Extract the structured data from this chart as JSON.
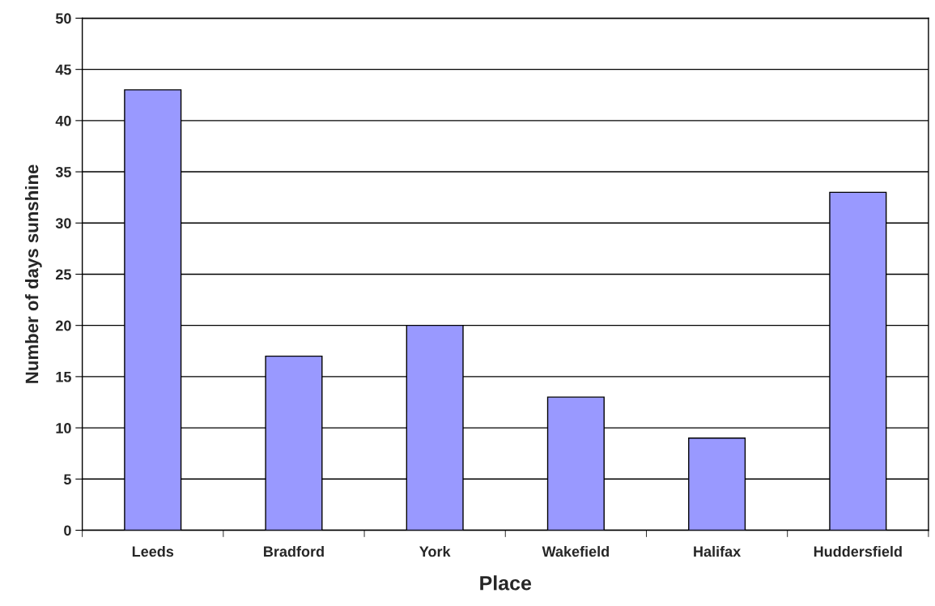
{
  "chart_data": {
    "type": "bar",
    "xlabel": "Place",
    "ylabel": "Number of days sunshine",
    "categories": [
      "Leeds",
      "Bradford",
      "York",
      "Wakefield",
      "Halifax",
      "Huddersfield"
    ],
    "values": [
      43,
      17,
      20,
      13,
      9,
      33
    ],
    "color": "#9999ff",
    "ylim": [
      0,
      50
    ],
    "yticks": [
      0,
      5,
      10,
      15,
      20,
      25,
      30,
      35,
      40,
      45,
      50
    ],
    "grid": "y"
  }
}
